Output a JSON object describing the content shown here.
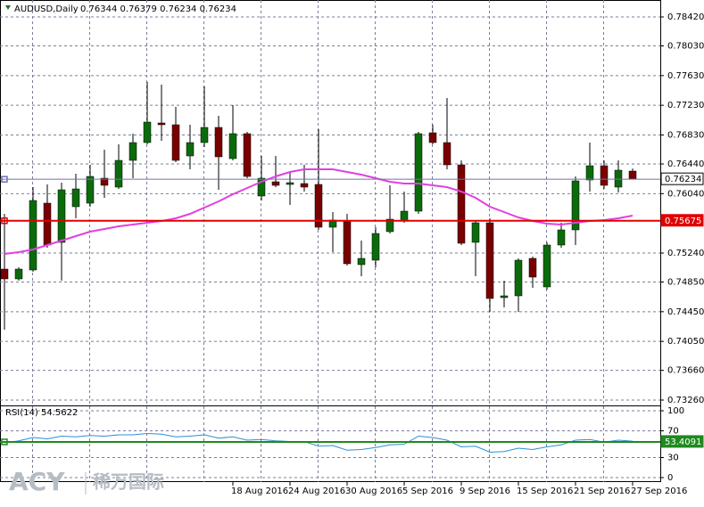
{
  "chart_data": [
    {
      "type": "candlestick",
      "title": "AUDUSD,Daily",
      "ohlc_text": "0.76344 0.76379 0.76234 0.76234",
      "categories": [
        null,
        null,
        null,
        null,
        null,
        null,
        null,
        null,
        null,
        null,
        null,
        null,
        null,
        null,
        null,
        null,
        "18 Aug 2016",
        null,
        null,
        null,
        "24 Aug 2016",
        null,
        null,
        null,
        "30 Aug 2016",
        null,
        null,
        null,
        "5 Sep 2016",
        null,
        null,
        null,
        "9 Sep 2016",
        null,
        null,
        null,
        "15 Sep 2016",
        null,
        null,
        null,
        "21 Sep 2016",
        null,
        null,
        null,
        "27 Sep 2016"
      ],
      "open": [
        0.75024,
        0.74892,
        0.75012,
        0.75912,
        0.75384,
        0.75864,
        0.75912,
        0.76248,
        0.76128,
        0.76488,
        0.76728,
        0.76992,
        0.76968,
        0.76548,
        0.76728,
        0.76932,
        0.76512,
        0.76848,
        0.76008,
        0.762,
        0.76164,
        0.76176,
        0.76164,
        0.75588,
        0.75672,
        0.75084,
        0.75144,
        0.75528,
        0.75672,
        0.75804,
        0.7686,
        0.76728,
        0.76428,
        0.75384,
        0.75648,
        0.7464,
        0.74664,
        0.75168,
        0.74784,
        0.75348,
        0.75552,
        0.76224,
        0.76416,
        0.76128,
        0.76344
      ],
      "high": [
        0.75768,
        0.75048,
        0.76128,
        0.76164,
        0.76188,
        0.76308,
        0.76428,
        0.76632,
        0.76704,
        0.76848,
        0.77544,
        0.77508,
        0.77208,
        0.76968,
        0.77484,
        0.77088,
        0.77232,
        0.76872,
        0.76548,
        0.76548,
        0.76344,
        0.76428,
        0.76908,
        0.75792,
        0.75768,
        0.75408,
        0.75588,
        0.76152,
        0.76068,
        0.76872,
        0.76968,
        0.77328,
        0.76488,
        0.75672,
        0.75708,
        0.74868,
        0.75168,
        0.75192,
        0.75384,
        0.75648,
        0.76272,
        0.76728,
        0.76488,
        0.76488,
        0.76379
      ],
      "low": [
        0.74208,
        0.74868,
        0.74988,
        0.75312,
        0.74868,
        0.75708,
        0.75864,
        0.75984,
        0.76104,
        0.76248,
        0.76704,
        0.76752,
        0.76464,
        0.76368,
        0.76668,
        0.76092,
        0.76488,
        0.76248,
        0.75948,
        0.76128,
        0.75888,
        0.76068,
        0.75552,
        0.75252,
        0.75072,
        0.74928,
        0.75048,
        0.75504,
        0.75648,
        0.75768,
        0.76704,
        0.76368,
        0.75348,
        0.74928,
        0.74448,
        0.74508,
        0.74448,
        0.74772,
        0.74748,
        0.75312,
        0.75348,
        0.76068,
        0.76104,
        0.76056,
        0.76234
      ],
      "close": [
        0.74892,
        0.75024,
        0.75948,
        0.75348,
        0.76092,
        0.76104,
        0.76272,
        0.76152,
        0.76488,
        0.76728,
        0.77004,
        0.76968,
        0.76488,
        0.76728,
        0.76932,
        0.76536,
        0.76848,
        0.76272,
        0.76248,
        0.76152,
        0.76188,
        0.76128,
        0.75588,
        0.75684,
        0.75096,
        0.75168,
        0.75504,
        0.75696,
        0.75804,
        0.76848,
        0.76728,
        0.76428,
        0.75372,
        0.75648,
        0.74628,
        0.74664,
        0.75144,
        0.74916,
        0.75348,
        0.75552,
        0.76212,
        0.76416,
        0.76152,
        0.76356,
        0.76234
      ],
      "up_color": "#0b6b0b",
      "down_color": "#7a0000",
      "overlays": [
        {
          "color": "#e040e0",
          "values": [
            0.75228,
            0.75252,
            0.75288,
            0.75348,
            0.75408,
            0.75468,
            0.75528,
            0.75564,
            0.756,
            0.75624,
            0.75648,
            0.75672,
            0.75708,
            0.75768,
            0.75852,
            0.75936,
            0.76032,
            0.76116,
            0.762,
            0.76272,
            0.76332,
            0.76368,
            0.76368,
            0.76368,
            0.76332,
            0.76296,
            0.76248,
            0.762,
            0.76176,
            0.76176,
            0.76152,
            0.76128,
            0.76068,
            0.75984,
            0.75864,
            0.75792,
            0.7572,
            0.75672,
            0.75636,
            0.75624,
            0.75648,
            0.75672,
            0.75684,
            0.75708,
            0.75744
          ]
        }
      ],
      "hlines": [
        {
          "value": 0.75675,
          "color": "#e00000"
        },
        {
          "value": 0.76234,
          "color": "#7070b0"
        }
      ],
      "ylim": [
        0.73188,
        0.78648
      ],
      "yticks": [
        {
          "value": 0.7842,
          "label": "0.78420"
        },
        {
          "value": 0.7803,
          "label": "0.78030"
        },
        {
          "value": 0.7763,
          "label": "0.77630"
        },
        {
          "value": 0.7723,
          "label": "0.77230"
        },
        {
          "value": 0.7683,
          "label": "0.76830"
        },
        {
          "value": 0.7644,
          "label": "0.76440"
        },
        {
          "value": 0.7604,
          "label": "0.76040"
        },
        {
          "value": 0.7524,
          "label": "0.75240"
        },
        {
          "value": 0.7485,
          "label": "0.74850"
        },
        {
          "value": 0.7445,
          "label": "0.74450"
        },
        {
          "value": 0.7405,
          "label": "0.74050"
        },
        {
          "value": 0.7366,
          "label": "0.73660"
        },
        {
          "value": 0.7326,
          "label": "0.73260"
        }
      ],
      "grid": true
    },
    {
      "type": "line",
      "title": "RSI(14) 54.5622",
      "values": [
        52,
        55,
        60,
        58,
        62,
        61,
        63,
        62,
        64,
        64,
        66,
        65,
        61,
        62,
        64,
        59,
        61,
        56,
        57,
        55,
        54,
        54,
        47,
        48,
        41,
        42,
        45,
        49,
        50,
        62,
        60,
        56,
        46,
        47,
        38,
        39,
        44,
        42,
        46,
        49,
        56,
        57,
        53,
        56,
        54.5622
      ],
      "color": "#2b8fd8",
      "hlines": [
        {
          "value": 53.4091,
          "color": "#1e8a1e"
        }
      ],
      "ylim": [
        -6.67,
        106.67
      ],
      "yticks": [
        0,
        30,
        70,
        100
      ],
      "grid": true
    }
  ],
  "watermark": {
    "brand": "ACY",
    "cn": "稀万国际"
  }
}
